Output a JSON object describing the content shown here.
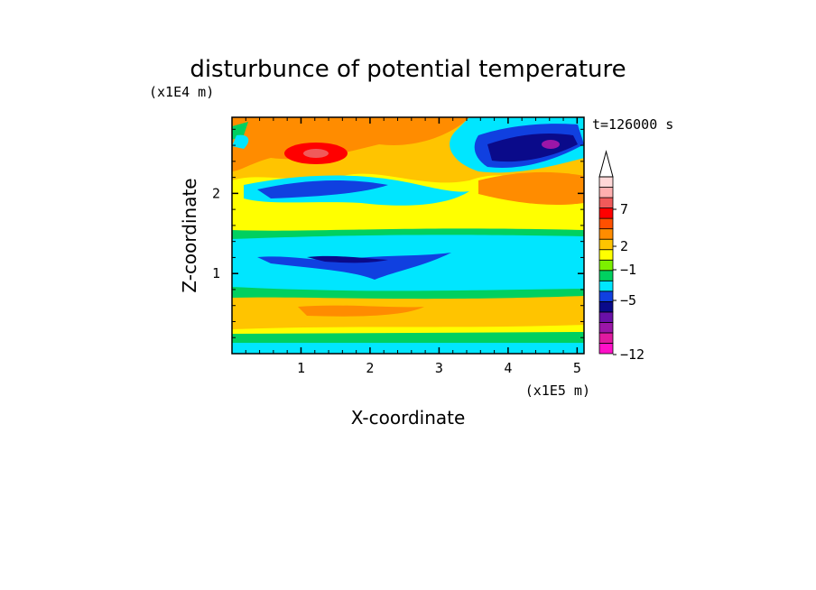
{
  "chart_data": {
    "type": "heatmap",
    "title": "disturbunce of potential temperature",
    "xlabel": "X-coordinate",
    "ylabel": "Z-coordinate",
    "x_unit": "(x1E5 m)",
    "y_unit": "(x1E4 m)",
    "time_label": "t=126000 s",
    "xlim": [
      0,
      5.1
    ],
    "ylim": [
      0,
      2.95
    ],
    "x_ticks": [
      "1",
      "2",
      "3",
      "4",
      "5"
    ],
    "y_ticks": [
      "1",
      "2"
    ],
    "colorbar": {
      "levels_shown": [
        "7",
        "2",
        "-1",
        "-5",
        "-12"
      ],
      "colors": [
        "#ff10c8",
        "#e01aa0",
        "#9b16a8",
        "#6a10a8",
        "#0a0a8a",
        "#1040e0",
        "#00e6ff",
        "#00d060",
        "#7cf000",
        "#ffff00",
        "#ffc400",
        "#ff8c00",
        "#ff5000",
        "#ff0000",
        "#f05a5a",
        "#ffb0b0",
        "#ffd8d8"
      ]
    },
    "bands": [
      {
        "z": [
          2.55,
          2.95
        ],
        "value": 2.5
      },
      {
        "z": [
          2.1,
          2.55
        ],
        "value": 4.5
      },
      {
        "z": [
          1.95,
          2.1
        ],
        "value": -5.5
      },
      {
        "z": [
          1.55,
          1.95
        ],
        "value": 1.5
      },
      {
        "z": [
          1.3,
          1.55
        ],
        "value": 0.5
      },
      {
        "z": [
          0.8,
          1.3
        ],
        "value": -1.0
      },
      {
        "z": [
          0.55,
          0.8
        ],
        "value": 0.5
      },
      {
        "z": [
          0.3,
          0.55
        ],
        "value": 2.5
      },
      {
        "z": [
          0.0,
          0.3
        ],
        "value": 0.0
      }
    ],
    "features": [
      {
        "x": 1.2,
        "z": 2.5,
        "value": 7
      },
      {
        "x": 4.4,
        "z": 2.65,
        "value": -6
      },
      {
        "x": 2.0,
        "z": 1.2,
        "value": -5
      },
      {
        "x": 4.6,
        "z": 2.3,
        "value": 5
      }
    ]
  }
}
